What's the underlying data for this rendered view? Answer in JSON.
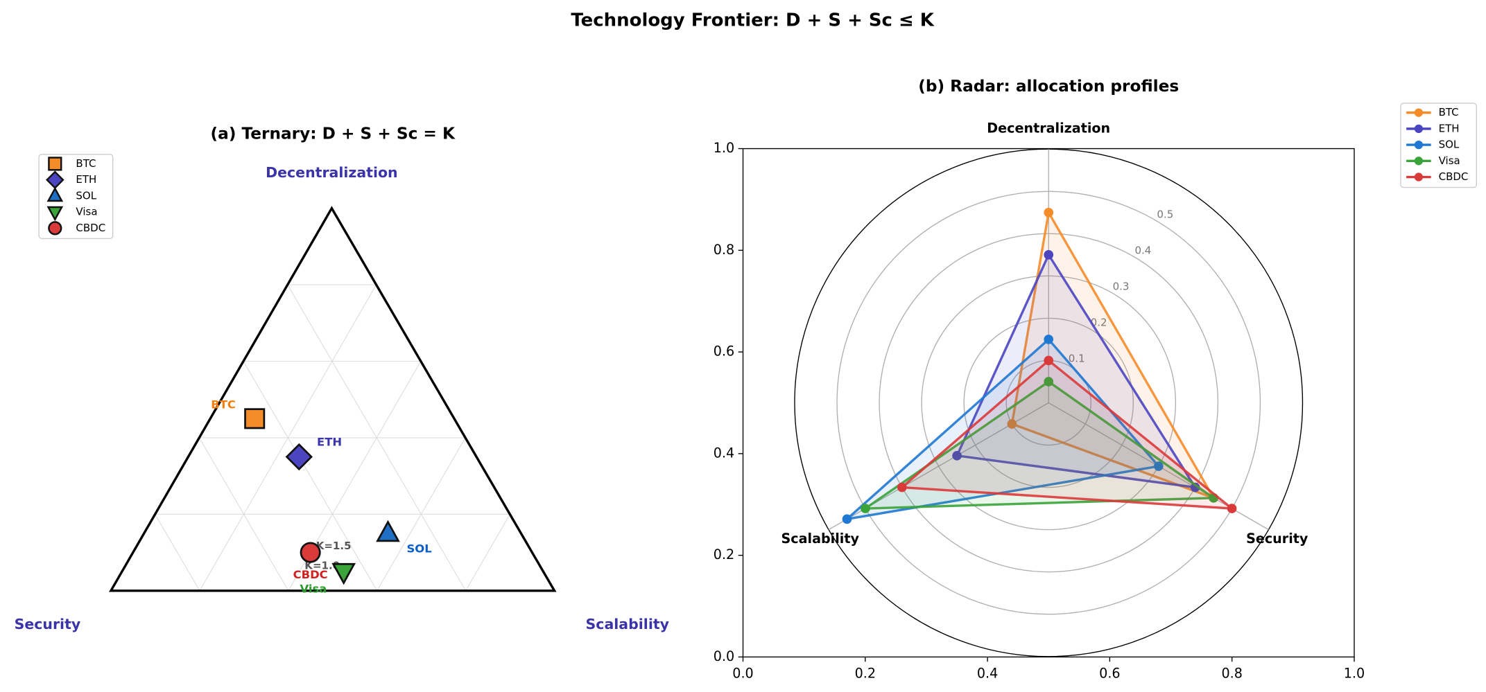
{
  "title": "Technology Frontier: D + S + Sc ≤ K",
  "chart_data": [
    {
      "type": "ternary",
      "title": "(a) Ternary: D + S + Sc = K",
      "axes": [
        "Decentralization",
        "Security",
        "Scalability"
      ],
      "ticks": [
        0.2,
        0.4,
        0.6,
        0.8
      ],
      "grid": true,
      "legend": "upper left",
      "series": [
        {
          "name": "BTC",
          "color": "#f58c2a",
          "label_color": "#f07f10",
          "marker": "square",
          "values": [
            0.45,
            0.45,
            0.1
          ]
        },
        {
          "name": "ETH",
          "color": "#4b45c0",
          "label_color": "#3a35a8",
          "marker": "diamond",
          "values": [
            0.35,
            0.4,
            0.25
          ]
        },
        {
          "name": "SOL",
          "color": "#1f6fc5",
          "label_color": "#0a5fc7",
          "marker": "triangle-up",
          "values": [
            0.15,
            0.3,
            0.55
          ]
        },
        {
          "name": "Visa",
          "color": "#3aa33a",
          "label_color": "#2a9a2a",
          "marker": "triangle-down",
          "values": [
            0.05,
            0.45,
            0.5
          ]
        },
        {
          "name": "CBDC",
          "color": "#d93a3a",
          "label_color": "#d02020",
          "marker": "circle",
          "values": [
            0.1,
            0.5,
            0.4
          ]
        }
      ],
      "annotations": [
        "K=1.5",
        "K=1.0"
      ]
    },
    {
      "type": "radar",
      "title": "(b) Radar: allocation profiles",
      "axes": [
        "Decentralization",
        "Security",
        "Scalability"
      ],
      "rlim": [
        0,
        0.6
      ],
      "rticks": [
        0.1,
        0.2,
        0.3,
        0.4,
        0.5
      ],
      "legend": "upper right outside",
      "xlim": [
        0,
        1
      ],
      "xticks": [
        {
          "value": 0,
          "label": "0.0"
        },
        0.2,
        0.4,
        0.6,
        0.8,
        {
          "value": 1,
          "label": "1.0"
        }
      ],
      "ylim": [
        0,
        1
      ],
      "yticks": [
        {
          "value": 0,
          "label": "0.0"
        },
        0.2,
        0.4,
        0.6,
        0.8,
        {
          "value": 1,
          "label": "1.0"
        }
      ],
      "series": [
        {
          "name": "BTC",
          "color": "#f58c2a",
          "values": [
            0.45,
            0.45,
            0.1
          ]
        },
        {
          "name": "ETH",
          "color": "#4b45c0",
          "values": [
            0.35,
            0.4,
            0.25
          ]
        },
        {
          "name": "SOL",
          "color": "#1f78d1",
          "values": [
            0.15,
            0.3,
            0.55
          ]
        },
        {
          "name": "Visa",
          "color": "#3aa33a",
          "values": [
            0.05,
            0.45,
            0.5
          ]
        },
        {
          "name": "CBDC",
          "color": "#d93a3a",
          "values": [
            0.1,
            0.5,
            0.4
          ]
        }
      ]
    }
  ]
}
